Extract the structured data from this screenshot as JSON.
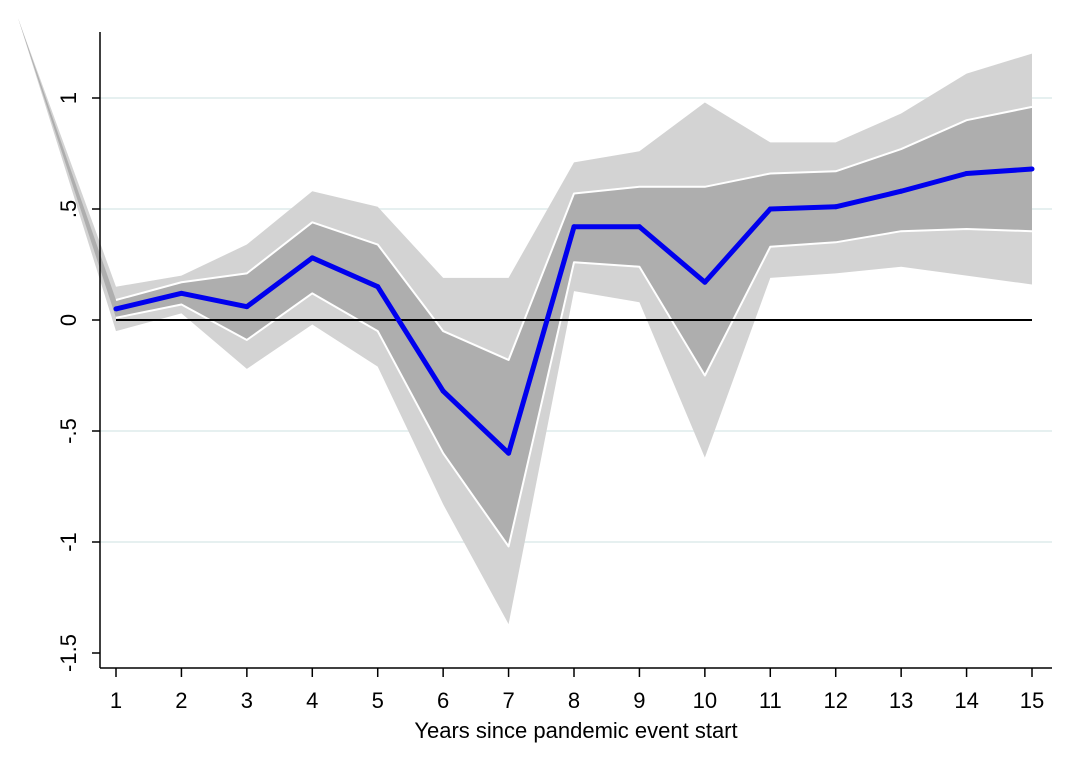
{
  "chart_data": {
    "type": "area",
    "xlabel": "Years since pandemic event start",
    "ylabel": "",
    "x": [
      1,
      2,
      3,
      4,
      5,
      6,
      7,
      8,
      9,
      10,
      11,
      12,
      13,
      14,
      15
    ],
    "xticks": [
      "1",
      "2",
      "3",
      "4",
      "5",
      "6",
      "7",
      "8",
      "9",
      "10",
      "11",
      "12",
      "13",
      "14",
      "15"
    ],
    "yticks": [
      {
        "value": 1,
        "label": "1"
      },
      {
        "value": 0.5,
        "label": ".5"
      },
      {
        "value": 0,
        "label": "0"
      },
      {
        "value": -0.5,
        "label": "-.5"
      },
      {
        "value": -1,
        "label": "-1"
      },
      {
        "value": -1.5,
        "label": "-1.5"
      }
    ],
    "ylim": [
      -1.5,
      1.25
    ],
    "xlim": [
      1,
      15
    ],
    "grid": "horizontal",
    "legend": "none",
    "reference_line": 0,
    "series": [
      {
        "role": "point_estimate",
        "values": [
          0.05,
          0.12,
          0.06,
          0.28,
          0.15,
          -0.32,
          -0.6,
          0.42,
          0.42,
          0.17,
          0.5,
          0.51,
          0.58,
          0.66,
          0.68
        ]
      },
      {
        "role": "inner_band_upper",
        "values": [
          0.09,
          0.17,
          0.21,
          0.44,
          0.34,
          -0.05,
          -0.18,
          0.57,
          0.6,
          0.6,
          0.66,
          0.67,
          0.77,
          0.9,
          0.96
        ]
      },
      {
        "role": "inner_band_lower",
        "values": [
          0.01,
          0.07,
          -0.09,
          0.12,
          -0.05,
          -0.6,
          -1.02,
          0.26,
          0.24,
          -0.25,
          0.33,
          0.35,
          0.4,
          0.41,
          0.4
        ]
      },
      {
        "role": "outer_band_upper",
        "values": [
          0.15,
          0.2,
          0.34,
          0.58,
          0.51,
          0.19,
          0.19,
          0.71,
          0.76,
          0.98,
          0.8,
          0.8,
          0.93,
          1.11,
          1.2
        ]
      },
      {
        "role": "outer_band_lower",
        "values": [
          -0.05,
          0.03,
          -0.22,
          -0.02,
          -0.21,
          -0.83,
          -1.37,
          0.13,
          0.08,
          -0.62,
          0.19,
          0.21,
          0.24,
          0.2,
          0.16
        ]
      }
    ],
    "colors": {
      "line": "#0000ee",
      "inner_band": "#aeaeae",
      "outer_band": "#d3d3d3",
      "band_edge": "#ffffff",
      "grid": "#e6f0f0",
      "reference": "#000000"
    }
  }
}
